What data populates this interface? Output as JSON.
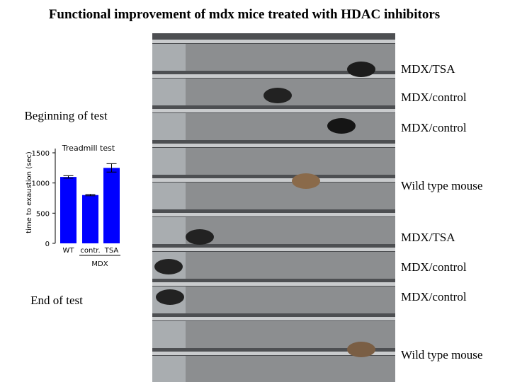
{
  "title": "Functional improvement of mdx mice treated with HDAC inhibitors",
  "captions": [
    "Beginning of test",
    "End of test"
  ],
  "lane_labels": [
    "MDX/TSA",
    "MDX/control",
    "MDX/control",
    "Wild type mouse",
    "MDX/TSA",
    "MDX/control",
    "MDX/control",
    "Wild type mouse"
  ],
  "chart_data": {
    "type": "bar",
    "title": "Treadmill test",
    "y_label": "time to exaustion (sec)",
    "categories": [
      "WT",
      "contr.",
      "TSA"
    ],
    "group_label": "MDX",
    "values": [
      1100,
      800,
      1250
    ],
    "errors": [
      20,
      12,
      70
    ],
    "color": "#0000ff",
    "ylim": [
      0,
      1500
    ],
    "yticks": [
      0,
      500,
      1000,
      1500
    ]
  }
}
